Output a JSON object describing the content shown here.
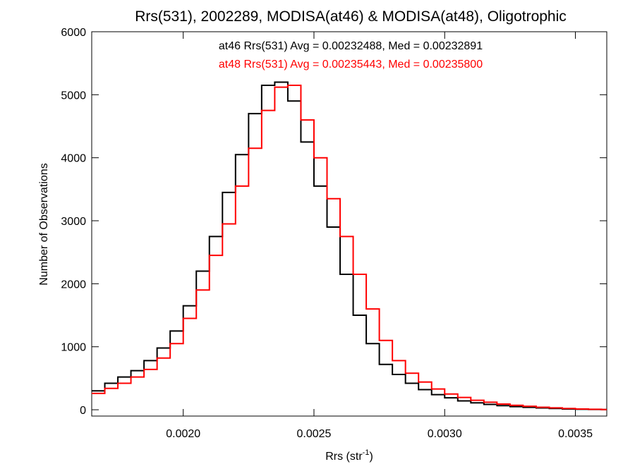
{
  "chart_data": {
    "type": "line",
    "title": "Rrs(531), 2002289, MODISA(at46) & MODISA(at48), Oligotrophic",
    "xlabel": {
      "base": "Rrs (str",
      "sup": "-1",
      "end": ")"
    },
    "ylabel": "Number of Observations",
    "xlim": [
      0.00165,
      0.00362
    ],
    "ylim": [
      -100,
      6000
    ],
    "x_ticks": [
      {
        "value": 0.002,
        "label": "0.0020"
      },
      {
        "value": 0.0025,
        "label": "0.0025"
      },
      {
        "value": 0.003,
        "label": "0.0030"
      },
      {
        "value": 0.0035,
        "label": "0.0035"
      }
    ],
    "y_ticks": [
      {
        "value": 0,
        "label": "0"
      },
      {
        "value": 1000,
        "label": "1000"
      },
      {
        "value": 2000,
        "label": "2000"
      },
      {
        "value": 3000,
        "label": "3000"
      },
      {
        "value": 4000,
        "label": "4000"
      },
      {
        "value": 5000,
        "label": "5000"
      },
      {
        "value": 6000,
        "label": "6000"
      }
    ],
    "series": [
      {
        "color": "#000000",
        "annotation": "at46 Rrs(531) Avg = 0.00232488, Med = 0.00232891",
        "x": [
          0.00165,
          0.0017,
          0.00175,
          0.0018,
          0.00185,
          0.0019,
          0.00195,
          0.002,
          0.00205,
          0.0021,
          0.00215,
          0.0022,
          0.00225,
          0.0023,
          0.00235,
          0.0024,
          0.00245,
          0.0025,
          0.00255,
          0.0026,
          0.00265,
          0.0027,
          0.00275,
          0.0028,
          0.00285,
          0.0029,
          0.00295,
          0.003,
          0.00305,
          0.0031,
          0.00315,
          0.0032,
          0.00325,
          0.0033,
          0.00335,
          0.0034,
          0.00345,
          0.0035,
          0.00355,
          0.0036
        ],
        "y": [
          300,
          420,
          520,
          620,
          780,
          980,
          1250,
          1650,
          2200,
          2750,
          3450,
          4050,
          4700,
          5150,
          5200,
          4900,
          4250,
          3550,
          2900,
          2150,
          1500,
          1050,
          720,
          560,
          420,
          320,
          240,
          190,
          140,
          110,
          85,
          65,
          50,
          38,
          28,
          20,
          12,
          8,
          5,
          3
        ]
      },
      {
        "color": "#ff0000",
        "annotation": "at48 Rrs(531) Avg = 0.00235443, Med = 0.00235800",
        "x": [
          0.00165,
          0.0017,
          0.00175,
          0.0018,
          0.00185,
          0.0019,
          0.00195,
          0.002,
          0.00205,
          0.0021,
          0.00215,
          0.0022,
          0.00225,
          0.0023,
          0.00235,
          0.0024,
          0.00245,
          0.0025,
          0.00255,
          0.0026,
          0.00265,
          0.0027,
          0.00275,
          0.0028,
          0.00285,
          0.0029,
          0.00295,
          0.003,
          0.00305,
          0.0031,
          0.00315,
          0.0032,
          0.00325,
          0.0033,
          0.00335,
          0.0034,
          0.00345,
          0.0035,
          0.00355,
          0.0036
        ],
        "y": [
          260,
          340,
          420,
          520,
          640,
          820,
          1050,
          1450,
          1900,
          2450,
          2950,
          3550,
          4150,
          4750,
          5120,
          5150,
          4600,
          4000,
          3350,
          2750,
          2150,
          1600,
          1100,
          780,
          580,
          440,
          330,
          250,
          195,
          150,
          120,
          90,
          70,
          55,
          40,
          30,
          20,
          12,
          8,
          4
        ]
      }
    ]
  }
}
